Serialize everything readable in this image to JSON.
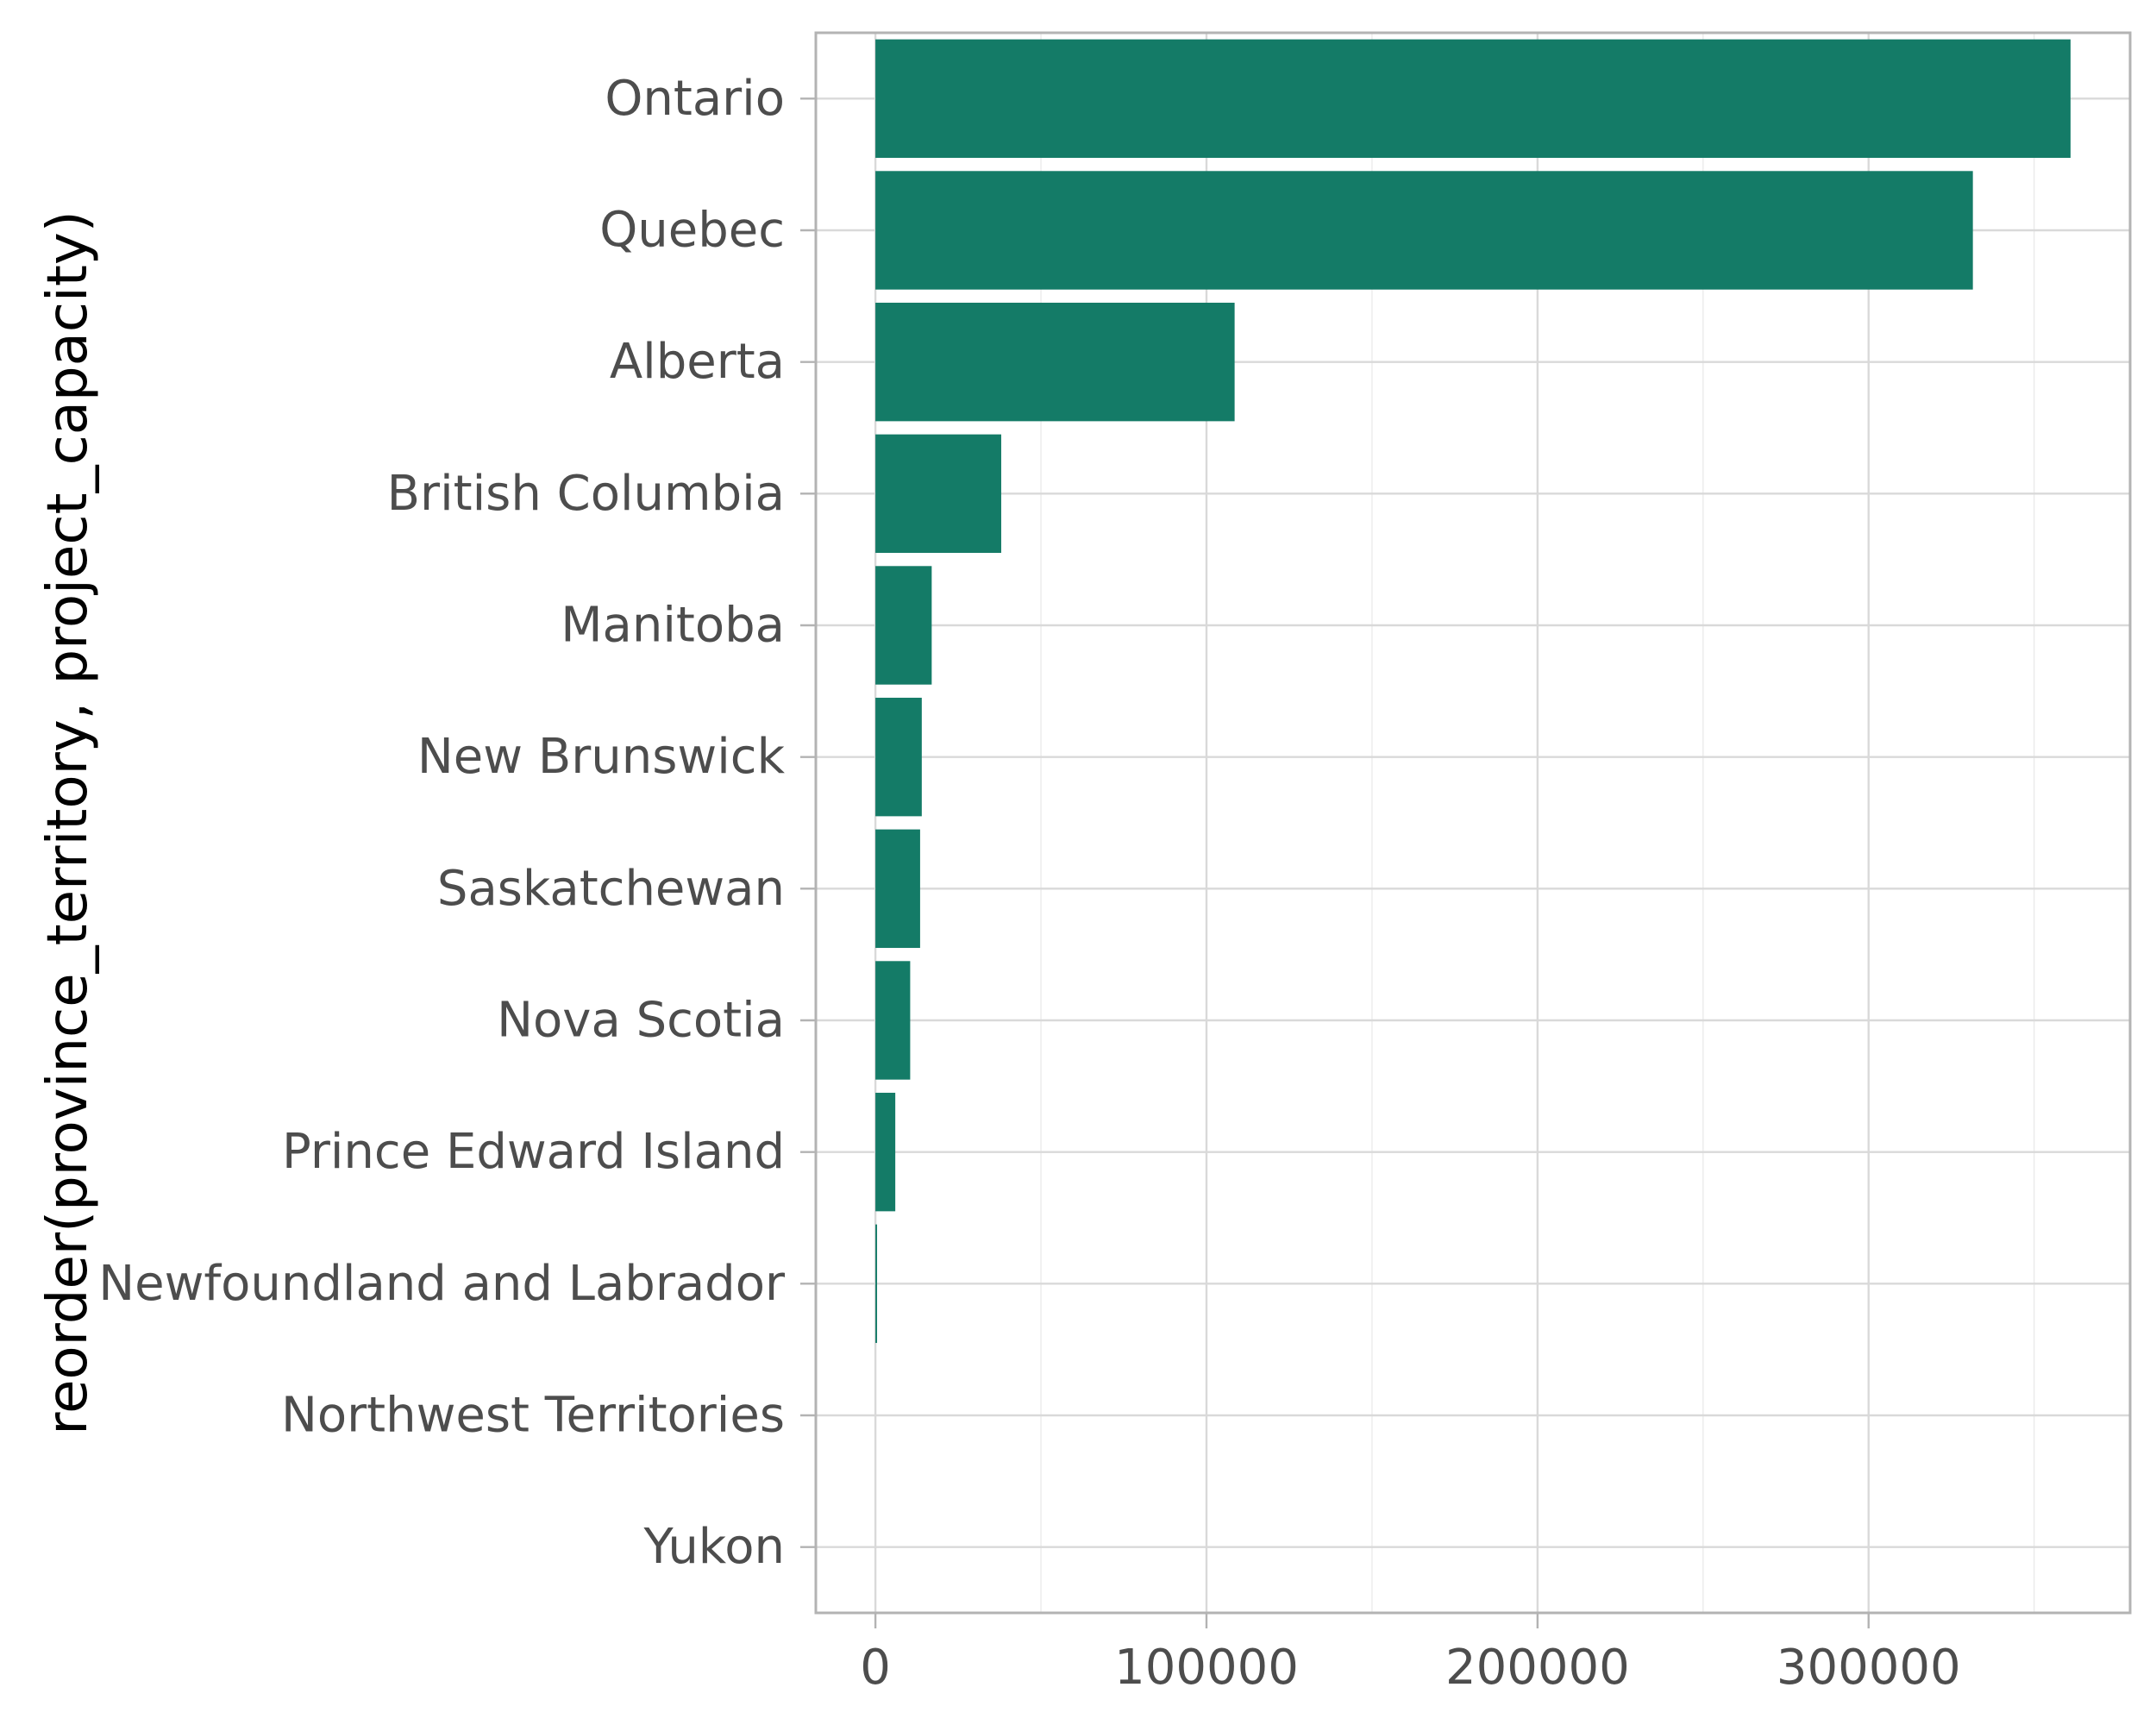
{
  "chart_data": {
    "type": "bar",
    "orientation": "horizontal",
    "categories": [
      "Ontario",
      "Quebec",
      "Alberta",
      "British Columbia",
      "Manitoba",
      "New Brunswick",
      "Saskatchewan",
      "Nova Scotia",
      "Prince Edward Island",
      "Newfoundland and Labrador",
      "Northwest Territories",
      "Yukon"
    ],
    "values": [
      361000,
      331500,
      108500,
      38000,
      17000,
      14000,
      13500,
      10500,
      6000,
      500,
      0,
      0
    ],
    "xlabel": "",
    "ylabel": "reorder(province_territory, project_capacity)",
    "xlim": [
      -18000,
      379000
    ],
    "xticks": [
      0,
      100000,
      200000,
      300000
    ],
    "xtick_labels": [
      "0",
      "100000",
      "200000",
      "300000"
    ],
    "grid": true,
    "legend": "none",
    "bar_color": "#147b67"
  }
}
